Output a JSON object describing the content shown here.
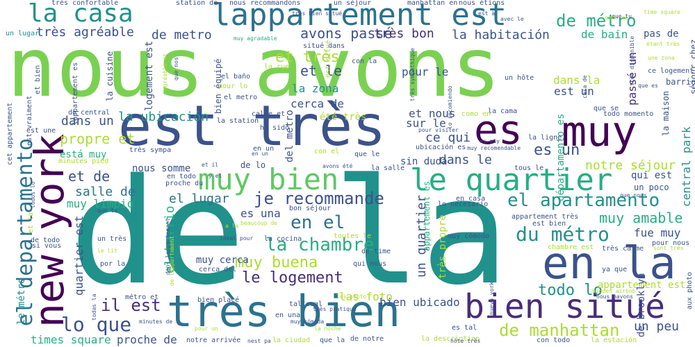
{
  "words": [
    {
      "t": "nous avons",
      "c": "#7ad151"
    },
    {
      "t": "de la",
      "c": "#21918c"
    },
    {
      "t": "est très",
      "c": "#3b528b"
    },
    {
      "t": "new york",
      "c": "#440154"
    },
    {
      "t": "en la",
      "c": "#3b528b"
    },
    {
      "t": "très bien",
      "c": "#2c728e"
    },
    {
      "t": "lappartement est",
      "c": "#2c728e"
    },
    {
      "t": "la casa",
      "c": "#21918c"
    },
    {
      "t": "muy",
      "c": "#440154"
    },
    {
      "t": "es",
      "c": "#440154"
    },
    {
      "t": "bien situé",
      "c": "#472d7b"
    },
    {
      "t": "le quartier",
      "c": "#28ae80"
    },
    {
      "t": "muy bien",
      "c": "#5ec962"
    },
    {
      "t": "el departamento",
      "c": "#2c728e"
    },
    {
      "t": "lo que",
      "c": "#3b528b"
    },
    {
      "t": "il est",
      "c": "#472d7b"
    },
    {
      "t": "el apartamento",
      "c": "#21918c"
    },
    {
      "t": "la chambre",
      "c": "#28ae80"
    },
    {
      "t": "du métro",
      "c": "#21918c"
    },
    {
      "t": "de manhattan",
      "c": "#addc30"
    },
    {
      "t": "de métro",
      "c": "#28ae80"
    },
    {
      "t": "je recommande",
      "c": "#3b528b"
    },
    {
      "t": "le logement",
      "c": "#472d7b"
    },
    {
      "t": "muy buena",
      "c": "#addc30"
    },
    {
      "t": "en el",
      "c": "#2c728e"
    },
    {
      "t": "muy amable",
      "c": "#28ae80"
    },
    {
      "t": "avons passé",
      "c": "#3b528b"
    },
    {
      "t": "très bon",
      "c": "#472d7b"
    },
    {
      "t": "la habitación",
      "c": "#3b528b"
    },
    {
      "t": "très agréable",
      "c": "#3b528b"
    },
    {
      "t": "de metro",
      "c": "#3b528b"
    },
    {
      "t": "et très",
      "c": "#addc30"
    },
    {
      "t": "et le",
      "c": "#3b528b"
    },
    {
      "t": "la zona",
      "c": "#21918c"
    },
    {
      "t": "cerca de",
      "c": "#3b528b"
    },
    {
      "t": "la ubicación",
      "c": "#21918c"
    },
    {
      "t": "propre et",
      "c": "#addc30"
    },
    {
      "t": "et de",
      "c": "#3b528b"
    },
    {
      "t": "salle de",
      "c": "#2c728e"
    },
    {
      "t": "muy limpio",
      "c": "#28ae80"
    },
    {
      "t": "dans un",
      "c": "#3b528b"
    },
    {
      "t": "el lugar",
      "c": "#2c728e"
    },
    {
      "t": "es una",
      "c": "#3b528b"
    },
    {
      "t": "dans le",
      "c": "#3b528b"
    },
    {
      "t": "notre séjour",
      "c": "#addc30"
    },
    {
      "t": "et nous",
      "c": "#3b528b"
    },
    {
      "t": "sur le",
      "c": "#3b528b"
    },
    {
      "t": "ce qui",
      "c": "#3b528b"
    },
    {
      "t": "es un",
      "c": "#3b528b"
    },
    {
      "t": "todo lo",
      "c": "#21918c"
    },
    {
      "t": "fue muy",
      "c": "#3b528b"
    },
    {
      "t": "un quartier",
      "c": "#3b528b"
    },
    {
      "t": "las foto",
      "c": "#addc30"
    },
    {
      "t": "bien ubicado",
      "c": "#3b528b"
    },
    {
      "t": "un peu",
      "c": "#3b528b"
    },
    {
      "t": "times square",
      "c": "#28ae80"
    },
    {
      "t": "proche de",
      "c": "#3b528b"
    },
    {
      "t": "pour le",
      "c": "#3b528b"
    },
    {
      "t": "de bain",
      "c": "#28ae80"
    },
    {
      "t": "pas de",
      "c": "#3b528b"
    },
    {
      "t": "dans la",
      "c": "#addc30"
    },
    {
      "t": "est un",
      "c": "#3b528b"
    },
    {
      "t": "qui est",
      "c": "#3b528b"
    },
    {
      "t": "un poco",
      "c": "#3b528b"
    },
    {
      "t": "central park",
      "c": "#21918c"
    },
    {
      "t": "passé un",
      "c": "#472d7b"
    },
    {
      "t": "appartement est",
      "c": "#addc30"
    },
    {
      "t": "el barrio",
      "c": "#28ae80"
    },
    {
      "t": "quartier est",
      "c": "#3b528b"
    },
    {
      "t": "muy cerca",
      "c": "#3b528b"
    },
    {
      "t": "la maison",
      "c": "#3b528b"
    },
    {
      "t": "de brooklyn",
      "c": "#3b528b"
    },
    {
      "t": "été très",
      "c": "#addc30"
    },
    {
      "t": "está muy",
      "c": "#28ae80"
    },
    {
      "t": "nous somme",
      "c": "#3b528b"
    },
    {
      "t": "sin duda",
      "c": "#3b528b"
    },
    {
      "t": "de lo",
      "c": "#3b528b"
    },
    {
      "t": "del metro",
      "c": "#3b528b"
    },
    {
      "t": "bien équipé",
      "c": "#3b528b"
    },
    {
      "t": "logement est",
      "c": "#3b528b"
    },
    {
      "t": "la cuisine",
      "c": "#3b528b"
    },
    {
      "t": "le métro",
      "c": "#21918c"
    },
    {
      "t": "en todo",
      "c": "#3b528b"
    },
    {
      "t": "départamento es",
      "c": "#28ae80"
    },
    {
      "t": "très propre",
      "c": "#addc30"
    },
    {
      "t": "appartement es",
      "c": "#28ae80"
    },
    {
      "t": "séjour chez",
      "c": "#3b528b"
    },
    {
      "t": "barrio es",
      "c": "#3b528b"
    },
    {
      "t": "ce logement",
      "c": "#3b528b"
    },
    {
      "t": "un lugar",
      "c": "#21918c"
    },
    {
      "t": "très confortable",
      "c": "#3b528b"
    },
    {
      "t": "station de",
      "c": "#3b528b"
    },
    {
      "t": "nous recommandons",
      "c": "#3b528b"
    },
    {
      "t": "un séjour",
      "c": "#3b528b"
    },
    {
      "t": "manhattan en",
      "c": "#3b528b"
    },
    {
      "t": "nous étions",
      "c": "#3b528b"
    },
    {
      "t": "muy agradable",
      "c": "#28ae80"
    },
    {
      "t": "situé dans",
      "c": "#3b528b"
    },
    {
      "t": "con la",
      "c": "#3b528b"
    },
    {
      "t": "la rue",
      "c": "#addc30"
    },
    {
      "t": "el baño",
      "c": "#3b528b"
    },
    {
      "t": "un hôte",
      "c": "#3b528b"
    },
    {
      "t": "pour lo",
      "c": "#addc30"
    },
    {
      "t": "el metro",
      "c": "#3b528b"
    },
    {
      "t": "calme et",
      "c": "#3b528b"
    },
    {
      "t": "ha sido",
      "c": "#3b528b"
    },
    {
      "t": "la station",
      "c": "#3b528b"
    },
    {
      "t": "la ligne",
      "c": "#3b528b"
    },
    {
      "t": "la cama",
      "c": "#3b528b"
    },
    {
      "t": "todo momento",
      "c": "#3b528b"
    },
    {
      "t": "que se",
      "c": "#3b528b"
    },
    {
      "t": "en un",
      "c": "#3b528b"
    },
    {
      "t": "con el",
      "c": "#addc30"
    },
    {
      "t": "que le",
      "c": "#3b528b"
    },
    {
      "t": "avons été",
      "c": "#3b528b"
    },
    {
      "t": "la salle",
      "c": "#3b528b"
    },
    {
      "t": "tous le",
      "c": "#3b528b"
    },
    {
      "t": "est une",
      "c": "#3b528b"
    },
    {
      "t": "de central",
      "c": "#3b528b"
    },
    {
      "t": "très sympa",
      "c": "#3b528b"
    },
    {
      "t": "minutes pied",
      "c": "#addc30"
    },
    {
      "t": "ubicación es",
      "c": "#3b528b"
    },
    {
      "t": "muy recomendable",
      "c": "#3b528b"
    },
    {
      "t": "pour visiter",
      "c": "#3b528b"
    },
    {
      "t": "proche du",
      "c": "#3b528b"
    },
    {
      "t": "bon séjour",
      "c": "#3b528b"
    },
    {
      "t": "en casa",
      "c": "#3b528b"
    },
    {
      "t": "lo necesario",
      "c": "#3b528b"
    },
    {
      "t": "beaucoup de",
      "c": "#addc30"
    },
    {
      "t": "est bien",
      "c": "#3b528b"
    },
    {
      "t": "appartement très",
      "c": "#3b528b"
    },
    {
      "t": "chambre est",
      "c": "#addc30"
    },
    {
      "t": "très calme",
      "c": "#3b528b"
    },
    {
      "t": "pour nous",
      "c": "#3b528b"
    },
    {
      "t": "sont très",
      "c": "#addc30"
    },
    {
      "t": "ya que",
      "c": "#3b528b"
    },
    {
      "t": "aux photo",
      "c": "#3b528b"
    },
    {
      "t": "la cocina",
      "c": "#3b528b"
    },
    {
      "t": "toutes le",
      "c": "#addc30"
    },
    {
      "t": "muy cómodo",
      "c": "#3b528b"
    },
    {
      "t": "de time",
      "c": "#3b528b"
    },
    {
      "t": "qui nous",
      "c": "#3b528b"
    },
    {
      "t": "si vous",
      "c": "#3b528b"
    },
    {
      "t": "de todo",
      "c": "#3b528b"
    },
    {
      "t": "por la",
      "c": "#3b528b"
    },
    {
      "t": "le lit",
      "c": "#addc30"
    },
    {
      "t": "un très",
      "c": "#3b528b"
    },
    {
      "t": "idéal pour",
      "c": "#3b528b"
    },
    {
      "t": "de lappartement",
      "c": "#addc30"
    },
    {
      "t": "cerca del",
      "c": "#3b528b"
    },
    {
      "t": "métro et",
      "c": "#3b528b"
    },
    {
      "t": "bien placé",
      "c": "#3b528b"
    },
    {
      "t": "très pratique",
      "c": "#3b528b"
    },
    {
      "t": "tal cual",
      "c": "#3b528b"
    },
    {
      "t": "les photo",
      "c": "#addc30"
    },
    {
      "t": "en una",
      "c": "#3b528b"
    },
    {
      "t": "muy cómoda",
      "c": "#3b528b"
    },
    {
      "t": "la noche",
      "c": "#addc30"
    },
    {
      "t": "es tal",
      "c": "#3b528b"
    },
    {
      "t": "minutes de",
      "c": "#3b528b"
    },
    {
      "t": "notre arrivée",
      "c": "#3b528b"
    },
    {
      "t": "nest pa",
      "c": "#3b528b"
    },
    {
      "t": "la ciudad",
      "c": "#addc30"
    },
    {
      "t": "que la",
      "c": "#3b528b"
    },
    {
      "t": "de notre",
      "c": "#3b528b"
    },
    {
      "t": "la description",
      "c": "#addc30"
    },
    {
      "t": "con todo",
      "c": "#3b528b"
    },
    {
      "t": "la estación",
      "c": "#addc30"
    },
    {
      "t": "hôte très",
      "c": "#3b528b"
    },
    {
      "t": "hidden airbnb",
      "c": "#addc30"
    },
    {
      "t": "nous navons",
      "c": "#3b528b"
    },
    {
      "t": "nueva york",
      "c": "#3b528b"
    },
    {
      "t": "cet appartement",
      "c": "#3b528b"
    },
    {
      "t": "est vraiment",
      "c": "#3b528b"
    },
    {
      "t": "et bien",
      "c": "#3b528b"
    },
    {
      "t": "lappartement es",
      "c": "#3b528b"
    },
    {
      "t": "est situé",
      "c": "#addc30"
    },
    {
      "t": "todos lo",
      "c": "#3b528b"
    },
    {
      "t": "todas la",
      "c": "#3b528b"
    },
    {
      "t": "et la",
      "c": "#addc30"
    },
    {
      "t": "et il",
      "c": "#3b528b"
    },
    {
      "t": "avec le",
      "c": "#3b528b"
    },
    {
      "t": "como en",
      "c": "#addc30"
    },
    {
      "t": "très sympathique",
      "c": "#3b528b"
    },
    {
      "t": "lo recomiendo",
      "c": "#3b528b"
    },
    {
      "t": "agréable et",
      "c": "#addc30"
    },
    {
      "t": "que nos",
      "c": "#3b528b"
    },
    {
      "t": "très disponible",
      "c": "#3b528b"
    },
    {
      "t": "que es",
      "c": "#3b528b"
    },
    {
      "t": "casa de",
      "c": "#3b528b"
    },
    {
      "t": "une zona",
      "c": "#addc30"
    },
    {
      "t": "étant très",
      "c": "#addc30"
    },
    {
      "t": "time square",
      "c": "#addc30"
    },
    {
      "t": "como se",
      "c": "#addc30"
    },
    {
      "t": "est à",
      "c": "#3b528b"
    },
    {
      "t": "que te",
      "c": "#3b528b"
    },
    {
      "t": "que nous",
      "c": "#3b528b"
    },
    {
      "t": "dans lappartement",
      "c": "#3b528b"
    },
    {
      "t": "que tu",
      "c": "#3b528b"
    },
    {
      "t": "en un",
      "c": "#3b528b"
    },
    {
      "t": "pour un",
      "c": "#addc30"
    },
    {
      "t": "es muy",
      "c": "#3b528b"
    },
    {
      "t": "très bien situé",
      "c": "#3b528b"
    },
    {
      "t": "y el",
      "c": "#3b528b"
    },
    {
      "t": "a la",
      "c": "#addc30"
    }
  ]
}
